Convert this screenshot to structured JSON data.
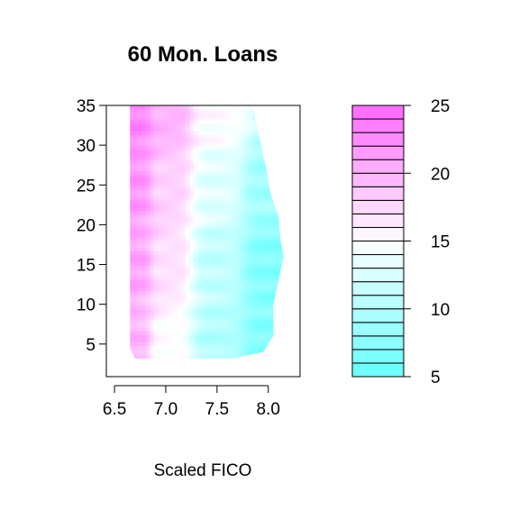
{
  "chart_data": {
    "type": "heatmap",
    "title": "60 Mon. Loans",
    "xlabel": "Scaled FICO",
    "ylabel": "",
    "xlim": [
      6.42,
      8.31
    ],
    "ylim": [
      0.9,
      35.0
    ],
    "xticks": [
      "6.5",
      "7.0",
      "7.5",
      "8.0"
    ],
    "xtick_values": [
      6.5,
      7.0,
      7.5,
      8.0
    ],
    "yticks": [
      "5",
      "10",
      "15",
      "20",
      "25",
      "30",
      "35"
    ],
    "ytick_values": [
      5,
      10,
      15,
      20,
      25,
      30,
      35
    ],
    "grid": false,
    "low_color": "#66ffff",
    "mid_color": "#ffffff",
    "high_color": "#ff66ff",
    "mid_value": 15,
    "region_x_min": 6.65,
    "region_boundary": [
      {
        "y": 3.2,
        "x_max": 7.65
      },
      {
        "y": 4.0,
        "x_max": 7.95
      },
      {
        "y": 6.0,
        "x_max": 8.05
      },
      {
        "y": 10.0,
        "x_max": 8.05
      },
      {
        "y": 13.0,
        "x_max": 8.1
      },
      {
        "y": 16.0,
        "x_max": 8.15
      },
      {
        "y": 18.0,
        "x_max": 8.12
      },
      {
        "y": 21.0,
        "x_max": 8.1
      },
      {
        "y": 24.0,
        "x_max": 8.02
      },
      {
        "y": 27.0,
        "x_max": 7.98
      },
      {
        "y": 30.0,
        "x_max": 7.93
      },
      {
        "y": 33.0,
        "x_max": 7.88
      },
      {
        "y": 35.0,
        "x_max": 7.85
      }
    ],
    "region_bottom_left": {
      "y": 4.5,
      "x": 6.65
    },
    "color_legend": {
      "breaks": [
        5,
        6,
        7,
        8,
        9,
        10,
        11,
        12,
        13,
        14,
        15,
        16,
        17,
        18,
        19,
        20,
        21,
        22,
        23,
        24,
        25
      ],
      "ticks": [
        "5",
        "10",
        "15",
        "20",
        "25"
      ],
      "tick_values": [
        5,
        10,
        15,
        20,
        25
      ]
    },
    "series": [
      {
        "x": 6.7,
        "y": 5,
        "value": 20
      },
      {
        "x": 6.7,
        "y": 15,
        "value": 21
      },
      {
        "x": 6.7,
        "y": 25,
        "value": 22
      },
      {
        "x": 6.7,
        "y": 34,
        "value": 23
      },
      {
        "x": 7.0,
        "y": 5,
        "value": 15
      },
      {
        "x": 7.0,
        "y": 15,
        "value": 17
      },
      {
        "x": 7.0,
        "y": 25,
        "value": 18
      },
      {
        "x": 7.0,
        "y": 34,
        "value": 20
      },
      {
        "x": 7.5,
        "y": 5,
        "value": 10
      },
      {
        "x": 7.5,
        "y": 15,
        "value": 11
      },
      {
        "x": 7.5,
        "y": 25,
        "value": 13
      },
      {
        "x": 7.5,
        "y": 34,
        "value": 15
      },
      {
        "x": 8.0,
        "y": 5,
        "value": 7
      },
      {
        "x": 8.0,
        "y": 15,
        "value": 7
      },
      {
        "x": 8.0,
        "y": 25,
        "value": 9
      }
    ]
  }
}
